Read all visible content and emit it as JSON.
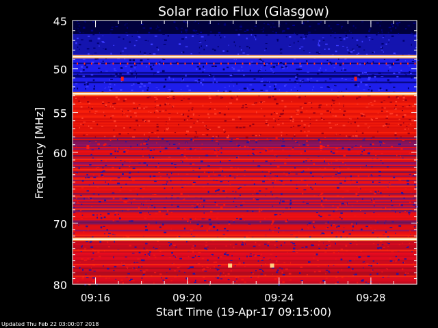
{
  "chart_data": {
    "type": "heatmap",
    "title": "Solar radio Flux (Glasgow)",
    "xlabel": "Start Time (19-Apr-17 09:15:00)",
    "ylabel": "Frequency [MHz]",
    "xlim": [
      "09:15:00",
      "09:30:00"
    ],
    "ylim": [
      45,
      80
    ],
    "y_scale": "log",
    "x_ticks": [
      "09:16",
      "09:20",
      "09:24",
      "09:28"
    ],
    "y_ticks": [
      45,
      50,
      55,
      60,
      70,
      80
    ],
    "colormap": [
      "#000040",
      "#1a1aff",
      "#ff0000",
      "#ffffff"
    ],
    "bright_bands_mhz": [
      48.7,
      52.8,
      72.5
    ],
    "spot_events": [
      {
        "time": "09:17:10",
        "freq": 51.1
      },
      {
        "time": "09:27:20",
        "freq": 51.1
      },
      {
        "time": "09:15:40",
        "freq": 59.3
      },
      {
        "time": "09:25:50",
        "freq": 59.3
      },
      {
        "time": "09:21:50",
        "freq": 76.8
      },
      {
        "time": "09:23:40",
        "freq": 76.8
      }
    ]
  },
  "footer": {
    "updated": "Updated Thu Feb 22 03:00:07 2018"
  }
}
